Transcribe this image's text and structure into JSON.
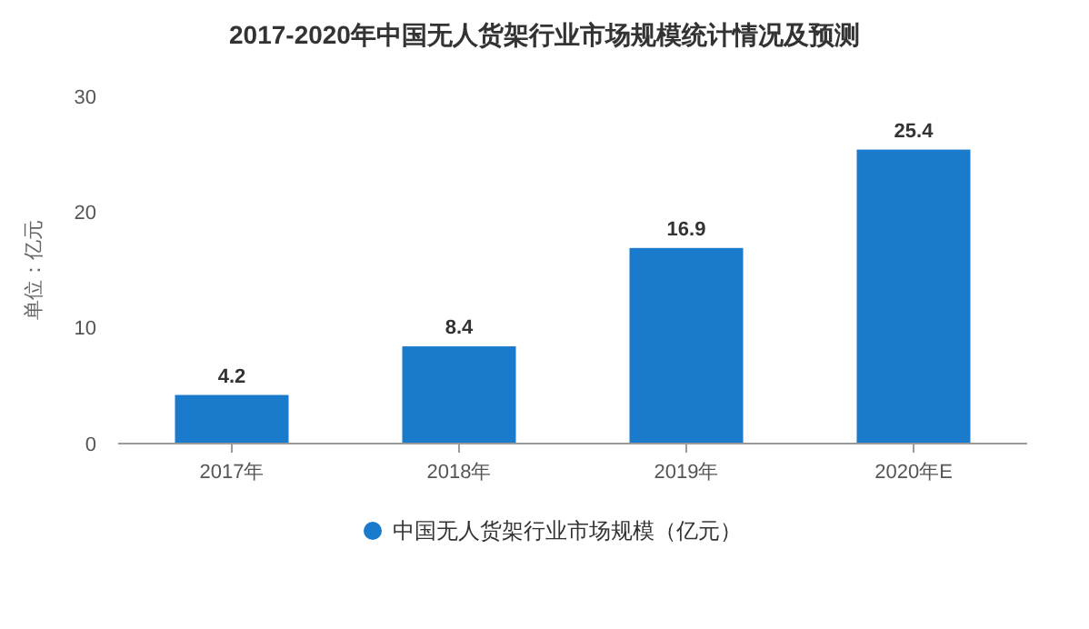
{
  "chart_data": {
    "type": "bar",
    "title": "2017-2020年中国无人货架行业市场规模统计情况及预测",
    "ylabel": "单位：亿元",
    "categories": [
      "2017年",
      "2018年",
      "2019年",
      "2020年E"
    ],
    "series": [
      {
        "name": "中国无人货架行业市场规模（亿元）",
        "color": "#1a7bcc",
        "values": [
          4.2,
          8.4,
          16.9,
          25.4
        ]
      }
    ],
    "ylim": [
      0,
      30
    ],
    "yticks": [
      0,
      10,
      20,
      30
    ],
    "grid": false,
    "legend": "bottom",
    "data_labels": true
  }
}
